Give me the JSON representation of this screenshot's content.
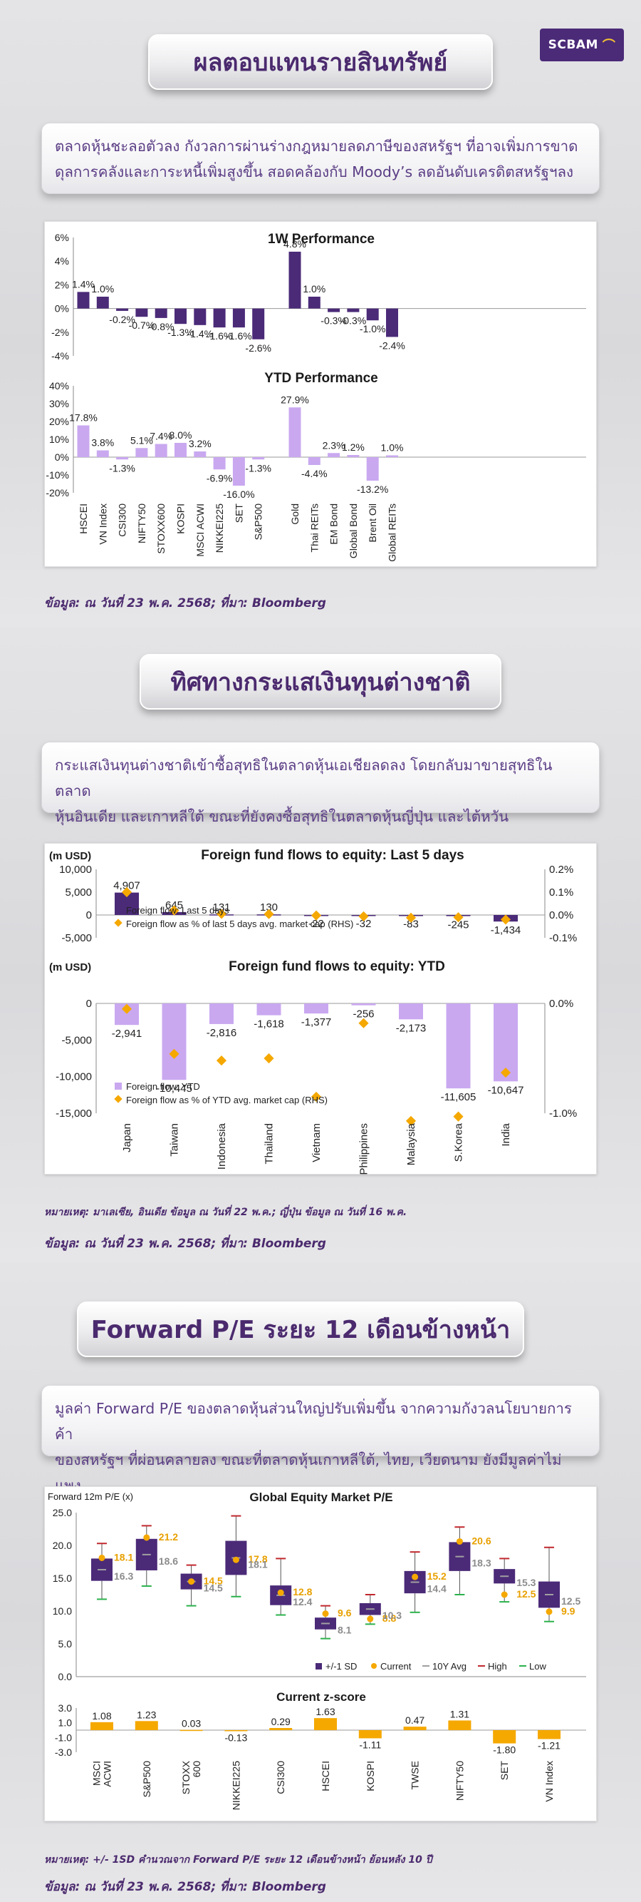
{
  "logo": {
    "text": "SCBAM"
  },
  "sections": [
    {
      "title": "ผลตอบแทนรายสินทรัพย์",
      "summary_lines": [
        "ตลาดหุ้นชะลอตัวลง กังวลการผ่านร่างกฎหมายลดภาษีของสหรัฐฯ ที่อาจเพิ่มการขาด",
        "ดุลการคลังและการะหนี้เพิ่มสูงขึ้น สอดคล้องกับ Moody’s ลดอันดับเครดิตสหรัฐฯลง"
      ],
      "source": "ข้อมูล: ณ วันที่ 23 พ.ค. 2568; ที่มา: Bloomberg"
    },
    {
      "title": "ทิศทางกระแสเงินทุนต่างชาติ",
      "summary_lines": [
        "กระแสเงินทุนต่างชาติเข้าซื้อสุทธิในตลาดหุ้นเอเชียลดลง โดยกลับมาขายสุทธิในตลาด",
        "หุ้นอินเดีย และเกาหลีใต้ ขณะที่ยังคงซื้อสุทธิในตลาดหุ้นญี่ปุ่น และไต้หวัน"
      ],
      "footnote": "หมายเหตุ: มาเลเซีย, อินเดีย ข้อมูล ณ วันที่ 22 พ.ค.; ญี่ปุ่น ข้อมูล ณ วันที่ 16 พ.ค.",
      "source": "ข้อมูล: ณ วันที่ 23 พ.ค. 2568; ที่มา: Bloomberg"
    },
    {
      "title": "Forward P/E ระยะ 12 เดือนข้างหน้า",
      "summary_lines": [
        "มูลค่า Forward P/E ของตลาดหุ้นส่วนใหญ่ปรับเพิ่มขึ้น จากความกังวลนโยบายการค้า",
        "ของสหรัฐฯ ที่ผ่อนคลายลง ขณะที่ตลาดหุ้นเกาหลีใต้, ไทย, เวียดนาม ยังมีมูลค่าไม่แพง"
      ],
      "footnote": "หมายเหตุ: +/- 1SD คำนวณจาก Forward P/E ระยะ 12 เดือนข้างหน้า ย้อนหลัง 10 ปี",
      "source": "ข้อมูล: ณ วันที่ 23 พ.ค. 2568; ที่มา: Bloomberg"
    }
  ],
  "chart_data": [
    {
      "type": "bar",
      "title": "1W Performance",
      "categories": [
        "HSCEI",
        "VN Index",
        "CSI300",
        "NIFTY50",
        "STOXX600",
        "KOSPI",
        "MSCI ACWI",
        "NIKKEI225",
        "SET",
        "S&P500",
        "Gold",
        "Thai REITs",
        "EM Bond",
        "Global Bond",
        "Brent Oil",
        "Global REITs"
      ],
      "values": [
        1.4,
        1.0,
        -0.2,
        -0.7,
        -0.8,
        -1.3,
        -1.4,
        -1.6,
        -1.6,
        -2.6,
        4.8,
        1.0,
        -0.3,
        -0.3,
        -1.0,
        -2.4
      ],
      "labels": [
        "1.4%",
        "1.0%",
        "-0.2%",
        "-0.7%",
        "-0.8%",
        "-1.3%",
        "-1.4%",
        "-1.6%",
        "-1.6%",
        "-2.6%",
        "4.8%",
        "1.0%",
        "-0.3%",
        "-0.3%",
        "-1.0%",
        "-2.4%"
      ],
      "yticks": [
        "6%",
        "4%",
        "2%",
        "0%",
        "-2%",
        "-4%"
      ],
      "ylim": [
        -4,
        6
      ],
      "colors": {
        "equity": "#4b2a78",
        "other": "#4b2a78"
      }
    },
    {
      "type": "bar",
      "title": "YTD Performance",
      "categories": [
        "HSCEI",
        "VN Index",
        "CSI300",
        "NIFTY50",
        "STOXX600",
        "KOSPI",
        "MSCI ACWI",
        "NIKKEI225",
        "SET",
        "S&P500",
        "Gold",
        "Thai REITs",
        "EM Bond",
        "Global Bond",
        "Brent Oil",
        "Global REITs"
      ],
      "values": [
        17.8,
        3.8,
        -1.3,
        5.1,
        7.4,
        8.0,
        3.2,
        -6.9,
        -16.0,
        -1.3,
        27.9,
        -4.4,
        2.3,
        1.2,
        -13.2,
        1.0
      ],
      "labels": [
        "17.8%",
        "3.8%",
        "-1.3%",
        "5.1%",
        "7.4%",
        "8.0%",
        "3.2%",
        "-6.9%",
        "-16.0%",
        "-1.3%",
        "27.9%",
        "-4.4%",
        "2.3%",
        "1.2%",
        "-13.2%",
        "1.0%"
      ],
      "yticks": [
        "40%",
        "30%",
        "20%",
        "10%",
        "0%",
        "-10%",
        "-20%"
      ],
      "ylim": [
        -20,
        40
      ],
      "colors": {
        "bar": "#c9a8f0"
      }
    },
    {
      "type": "bar",
      "title": "Foreign fund flows to equity: Last 5 days",
      "ylabel": "(m USD)",
      "categories": [
        "Japan",
        "Taiwan",
        "Indonesia",
        "Thailand",
        "Vietnam",
        "Philippines",
        "Malaysia",
        "S.Korea",
        "India"
      ],
      "values": [
        4907,
        645,
        131,
        130,
        -22,
        -32,
        -83,
        -245,
        -1434
      ],
      "labels": [
        "4,907",
        "645",
        "131",
        "130",
        "-22",
        "-32",
        "-83",
        "-245",
        "-1,434"
      ],
      "pct_of_mcap": [
        0.1,
        0.02,
        0.005,
        0.004,
        -0.002,
        -0.006,
        -0.012,
        -0.01,
        -0.02
      ],
      "yticks": [
        "10,000",
        "5,000",
        "0",
        "-5,000"
      ],
      "ylim": [
        -5000,
        10000
      ],
      "rhs_ticks": [
        "0.2%",
        "0.1%",
        "0.0%",
        "-0.1%"
      ],
      "rhs_lim": [
        -0.1,
        0.2
      ],
      "legend": [
        "Foreign flow: Last 5 days",
        "Foreign flow as % of last 5 days avg. market cap (RHS)"
      ],
      "colors": {
        "bar": "#4b2a78",
        "marker": "#f5a800"
      }
    },
    {
      "type": "bar",
      "title": "Foreign fund flows to equity: YTD",
      "ylabel": "(m USD)",
      "categories": [
        "Japan",
        "Taiwan",
        "Indonesia",
        "Thailand",
        "Vietnam",
        "Philippines",
        "Malaysia",
        "S.Korea",
        "India"
      ],
      "values": [
        -2941,
        -10445,
        -2816,
        -1618,
        -1377,
        -256,
        -2173,
        -11605,
        -10647
      ],
      "labels": [
        "-2,941",
        "-10,445",
        "-2,816",
        "-1,618",
        "-1,377",
        "-256",
        "-2,173",
        "-11,605",
        "-10,647"
      ],
      "pct_of_mcap": [
        -0.05,
        -0.46,
        -0.52,
        -0.5,
        -0.85,
        -0.18,
        -1.07,
        -1.03,
        -0.63
      ],
      "yticks": [
        "0",
        "-5,000",
        "-10,000",
        "-15,000"
      ],
      "ylim": [
        -15000,
        0
      ],
      "rhs_ticks": [
        "0.0%",
        "-1.0%"
      ],
      "rhs_lim": [
        -1.0,
        0.0
      ],
      "legend": [
        "Foreign flow: YTD",
        "Foreign flow as % of YTD avg. market cap (RHS)"
      ],
      "colors": {
        "bar": "#c9a8f0",
        "marker": "#f5a800"
      }
    },
    {
      "type": "boxplot",
      "title": "Global Equity Market P/E",
      "ylabel": "Forward 12m P/E (x)",
      "categories": [
        "MSCI ACWI",
        "S&P500",
        "STOXX 600",
        "NIKKEI225",
        "CSI300",
        "HSCEI",
        "KOSPI",
        "TWSE",
        "NIFTY50",
        "SET",
        "VN Index"
      ],
      "category_labels": [
        [
          "MSCI",
          "ACWI"
        ],
        [
          "S&P500"
        ],
        [
          "STOXX",
          "600"
        ],
        [
          "NIKKEI225"
        ],
        [
          "CSI300"
        ],
        [
          "HSCEI"
        ],
        [
          "KOSPI"
        ],
        [
          "TWSE"
        ],
        [
          "NIFTY50"
        ],
        [
          "SET"
        ],
        [
          "VN Index"
        ]
      ],
      "avg_10y": [
        16.3,
        18.6,
        14.5,
        18.1,
        12.4,
        8.1,
        10.3,
        14.4,
        18.3,
        15.3,
        12.5
      ],
      "current": [
        18.1,
        21.2,
        14.5,
        17.8,
        12.8,
        9.6,
        8.8,
        15.2,
        20.6,
        12.5,
        9.9
      ],
      "sd_upper": [
        18.0,
        21.0,
        15.7,
        20.7,
        13.9,
        9.0,
        11.2,
        16.1,
        20.5,
        16.4,
        14.5
      ],
      "sd_lower": [
        14.6,
        16.2,
        13.3,
        15.5,
        10.9,
        7.2,
        9.4,
        12.7,
        16.1,
        14.2,
        10.5
      ],
      "high": [
        20.3,
        23.0,
        17.0,
        24.5,
        18.0,
        10.8,
        12.5,
        19.0,
        22.8,
        18.0,
        19.7
      ],
      "low": [
        11.8,
        13.8,
        10.8,
        12.2,
        9.4,
        5.8,
        8.0,
        9.8,
        12.5,
        11.4,
        8.4
      ],
      "avg_labels": [
        "16.3",
        "18.6",
        "14.5",
        "18.1",
        "12.4",
        "8.1",
        "10.3",
        "14.4",
        "18.3",
        "15.3",
        "12.5"
      ],
      "current_labels": [
        "18.1",
        "21.2",
        "14.5",
        "17.8",
        "12.8",
        "9.6",
        "8.8",
        "15.2",
        "20.6",
        "12.5",
        "9.9"
      ],
      "yticks": [
        "25.0",
        "20.0",
        "15.0",
        "10.0",
        "5.0",
        "0.0"
      ],
      "ylim": [
        0,
        25
      ],
      "legend": [
        "+/-1 SD",
        "Current",
        "10Y Avg",
        "High",
        "Low"
      ],
      "colors": {
        "box": "#4b2a78",
        "current": "#f5a800",
        "avg": "#a0a0a0",
        "high": "#c0282d",
        "low": "#2bb24c"
      }
    },
    {
      "type": "bar",
      "title": "Current z-score",
      "categories": [
        "MSCI ACWI",
        "S&P500",
        "STOXX 600",
        "NIKKEI225",
        "CSI300",
        "HSCEI",
        "KOSPI",
        "TWSE",
        "NIFTY50",
        "SET",
        "VN Index"
      ],
      "values": [
        1.08,
        1.23,
        0.03,
        -0.13,
        0.29,
        1.63,
        -1.11,
        0.47,
        1.31,
        -1.8,
        -1.21
      ],
      "labels": [
        "1.08",
        "1.23",
        "0.03",
        "-0.13",
        "0.29",
        "1.63",
        "-1.11",
        "0.47",
        "1.31",
        "-1.80",
        "-1.21"
      ],
      "yticks": [
        "3.0",
        "1.0",
        "-1.0",
        "-3.0"
      ],
      "ylim": [
        -3,
        3
      ],
      "colors": {
        "bar": "#f5a800"
      }
    }
  ]
}
